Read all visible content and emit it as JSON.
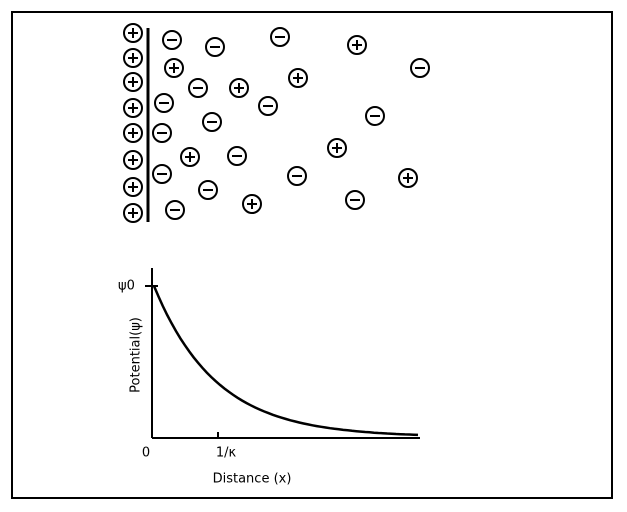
{
  "plot": {
    "y_axis_label": "Potential(ψ)",
    "y_tick_label": "ψ0",
    "x_axis_label": "Distance (x)",
    "x_origin_label": "0",
    "x_tick_label": "1/κ"
  }
}
